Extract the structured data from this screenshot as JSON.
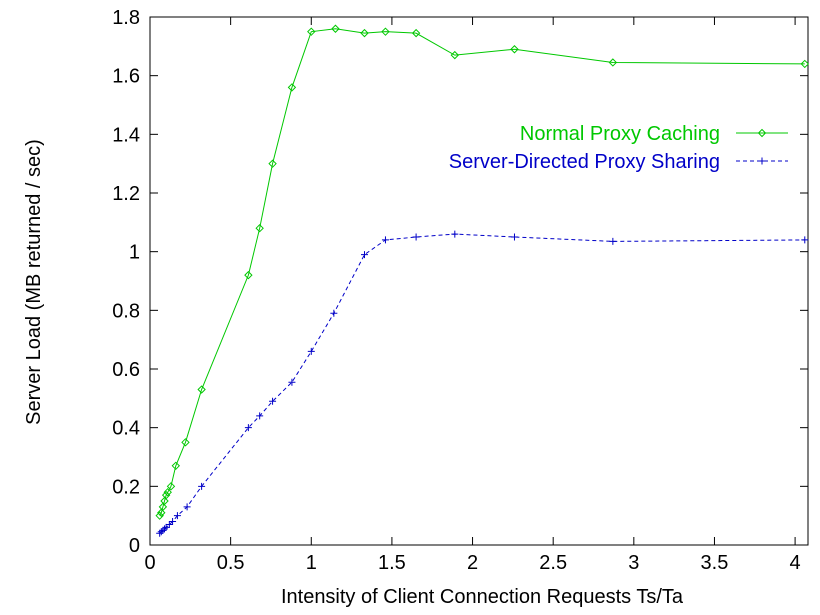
{
  "chart_data": {
    "type": "line",
    "title": "",
    "xlabel": "Intensity of Client Connection Requests  Ts/Ta",
    "ylabel": "Server Load (MB returned / sec)",
    "xlim": [
      0,
      4.08
    ],
    "ylim": [
      0,
      1.8
    ],
    "xticks": [
      0,
      0.5,
      1,
      1.5,
      2,
      2.5,
      3,
      3.5,
      4
    ],
    "xtick_labels": [
      "0",
      "0.5",
      "1",
      "1.5",
      "2",
      "2.5",
      "3",
      "3.5",
      "4"
    ],
    "yticks": [
      0,
      0.2,
      0.4,
      0.6,
      0.8,
      1,
      1.2,
      1.4,
      1.6,
      1.8
    ],
    "ytick_labels": [
      "0",
      "0.2",
      "0.4",
      "0.6",
      "0.8",
      "1",
      "1.2",
      "1.4",
      "1.6",
      "1.8"
    ],
    "grid": false,
    "legend_position": "upper-right",
    "series": [
      {
        "name": "Normal Proxy Caching",
        "color": "#00c800",
        "marker": "diamond",
        "dash": "solid",
        "x": [
          0.06,
          0.07,
          0.08,
          0.09,
          0.1,
          0.11,
          0.13,
          0.16,
          0.22,
          0.32,
          0.61,
          0.68,
          0.76,
          0.88,
          1.0,
          1.15,
          1.33,
          1.46,
          1.65,
          1.89,
          2.26,
          2.87,
          4.06
        ],
        "y": [
          0.1,
          0.11,
          0.13,
          0.15,
          0.17,
          0.18,
          0.2,
          0.27,
          0.35,
          0.53,
          0.92,
          1.08,
          1.3,
          1.56,
          1.75,
          1.76,
          1.745,
          1.75,
          1.745,
          1.67,
          1.69,
          1.645,
          1.64
        ]
      },
      {
        "name": "Server-Directed Proxy Sharing",
        "color": "#0000c8",
        "marker": "plus",
        "dash": "dashed",
        "x": [
          0.06,
          0.07,
          0.08,
          0.09,
          0.1,
          0.12,
          0.14,
          0.17,
          0.23,
          0.32,
          0.61,
          0.68,
          0.76,
          0.88,
          1.0,
          1.14,
          1.33,
          1.46,
          1.65,
          1.89,
          2.26,
          2.87,
          4.06
        ],
        "y": [
          0.04,
          0.045,
          0.05,
          0.055,
          0.06,
          0.07,
          0.08,
          0.1,
          0.13,
          0.2,
          0.4,
          0.44,
          0.49,
          0.555,
          0.66,
          0.79,
          0.99,
          1.04,
          1.05,
          1.06,
          1.05,
          1.035,
          1.04
        ]
      }
    ]
  }
}
